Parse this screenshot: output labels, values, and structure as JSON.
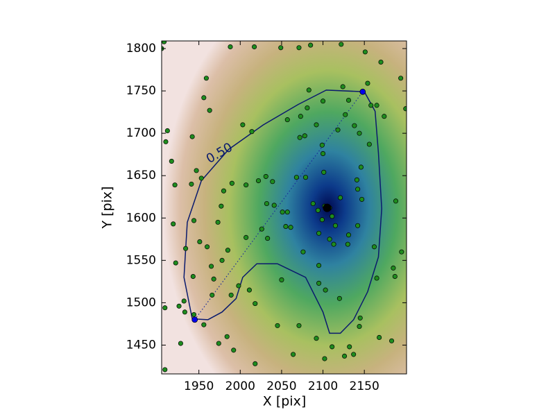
{
  "chart_data": {
    "type": "scatter",
    "xlabel": "X [pix]",
    "ylabel": "Y [pix]",
    "xlim": [
      1905,
      2201
    ],
    "ylim": [
      1416,
      1809
    ],
    "xticks": [
      1950,
      2000,
      2050,
      2100,
      2150
    ],
    "yticks": [
      1450,
      1500,
      1550,
      1600,
      1650,
      1700,
      1750,
      1800
    ],
    "grid": false,
    "points": {
      "color": "#1e8c1e",
      "x": [
        1908,
        1905,
        1988,
        2017,
        2049,
        2071,
        2085,
        2122,
        2151,
        2170,
        2194,
        2200,
        1959,
        1956,
        1963,
        1912,
        1910,
        1917,
        1921,
        1942,
        1947,
        1953,
        1941,
        1919,
        1944,
        1951,
        1934,
        1922,
        1960,
        1977,
        1973,
        1980,
        1990,
        2003,
        2014,
        2022,
        2007,
        2031,
        2039,
        2026,
        2032,
        2041,
        2051,
        2057,
        2055,
        2061,
        2068,
        2079,
        2072,
        2078,
        2073,
        2057,
        2081,
        2092,
        2100,
        2083,
        2099,
        2100,
        2101,
        2118,
        2127,
        2124,
        2154,
        2131,
        2138,
        2144,
        2158,
        2165,
        2174,
        2156,
        2146,
        2141,
        2142,
        2147,
        2142,
        2131,
        2130,
        2115,
        2111,
        2108,
        2102,
        2094,
        2099,
        2088,
        2095,
        2108,
        2113,
        2095,
        2076,
        2095,
        2103,
        2120,
        2165,
        2145,
        2144,
        2168,
        2183,
        2162,
        2188,
        2195,
        2185,
        2187,
        2111,
        2132,
        2137,
        2126,
        2102,
        2092,
        2071,
        2064,
        2045,
        2050,
        2018,
        2011,
        1998,
        1989,
        1966,
        1968,
        1965,
        1943,
        1932,
        1926,
        1933,
        1944,
        1956,
        1974,
        1984,
        1992,
        2018,
        1928,
        1909,
        1909,
        1985,
        1978,
        2007,
        2033,
        2121
      ],
      "y": [
        1808,
        1800,
        1802,
        1802,
        1801,
        1801,
        1804,
        1805,
        1796,
        1784,
        1765,
        1729,
        1765,
        1742,
        1727,
        1703,
        1690,
        1667,
        1639,
        1696,
        1656,
        1647,
        1640,
        1593,
        1597,
        1572,
        1564,
        1547,
        1566,
        1614,
        1595,
        1632,
        1641,
        1710,
        1702,
        1644,
        1639,
        1649,
        1643,
        1587,
        1617,
        1615,
        1607,
        1607,
        1590,
        1589,
        1648,
        1648,
        1695,
        1697,
        1720,
        1716,
        1730,
        1710,
        1738,
        1751,
        1686,
        1676,
        1654,
        1704,
        1722,
        1755,
        1759,
        1739,
        1709,
        1700,
        1733,
        1733,
        1720,
        1687,
        1660,
        1645,
        1634,
        1622,
        1591,
        1580,
        1569,
        1591,
        1602,
        1612,
        1614,
        1609,
        1598,
        1617,
        1582,
        1575,
        1569,
        1544,
        1560,
        1523,
        1515,
        1505,
        1529,
        1482,
        1472,
        1459,
        1455,
        1566,
        1620,
        1560,
        1541,
        1531,
        1448,
        1448,
        1439,
        1437,
        1434,
        1458,
        1473,
        1439,
        1473,
        1527,
        1499,
        1515,
        1520,
        1509,
        1509,
        1528,
        1543,
        1531,
        1502,
        1496,
        1489,
        1486,
        1474,
        1452,
        1460,
        1444,
        1428,
        1452,
        1421,
        1494,
        1562,
        1550,
        1577,
        1576,
        1624
      ]
    },
    "endpoints": {
      "color": "#0000ee",
      "x": [
        1945,
        2148
      ],
      "y": [
        1480,
        1749
      ]
    },
    "center": {
      "color": "#000000",
      "x": [
        2105
      ],
      "y": [
        1612
      ]
    },
    "contour": {
      "label": "0.50",
      "color": "#0a1a6e",
      "x": [
        1942,
        1932,
        1936,
        1953,
        1986,
        2028,
        2070,
        2104,
        2150,
        2163,
        2167,
        2171,
        2167,
        2154,
        2137,
        2121,
        2108,
        2100,
        2079,
        2045,
        2020,
        2003,
        1995,
        1978,
        1961,
        1942
      ],
      "y": [
        1481,
        1530,
        1595,
        1644,
        1681,
        1710,
        1734,
        1751,
        1749,
        1726,
        1677,
        1611,
        1554,
        1513,
        1480,
        1464,
        1464,
        1489,
        1530,
        1546,
        1546,
        1530,
        1505,
        1489,
        1480,
        1481
      ]
    }
  }
}
